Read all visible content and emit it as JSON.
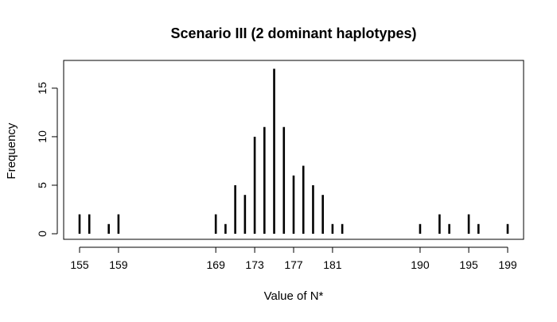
{
  "chart_data": {
    "type": "bar",
    "title": "Scenario III (2 dominant haplotypes)",
    "xlabel": "Value of N*",
    "ylabel": "Frequency",
    "xlim": [
      155,
      199
    ],
    "ylim": [
      0,
      17
    ],
    "x_ticks": [
      155,
      159,
      169,
      173,
      177,
      181,
      190,
      195,
      199
    ],
    "y_ticks": [
      0,
      5,
      10,
      15
    ],
    "x": [
      155,
      156,
      158,
      159,
      169,
      170,
      171,
      172,
      173,
      174,
      175,
      176,
      177,
      178,
      179,
      180,
      181,
      182,
      190,
      192,
      193,
      195,
      196,
      199
    ],
    "values": [
      2,
      2,
      1,
      2,
      2,
      1,
      5,
      4,
      10,
      11,
      17,
      11,
      6,
      7,
      5,
      4,
      1,
      1,
      1,
      2,
      1,
      2,
      1,
      1
    ],
    "grid": false,
    "mark_color": "#000000"
  }
}
